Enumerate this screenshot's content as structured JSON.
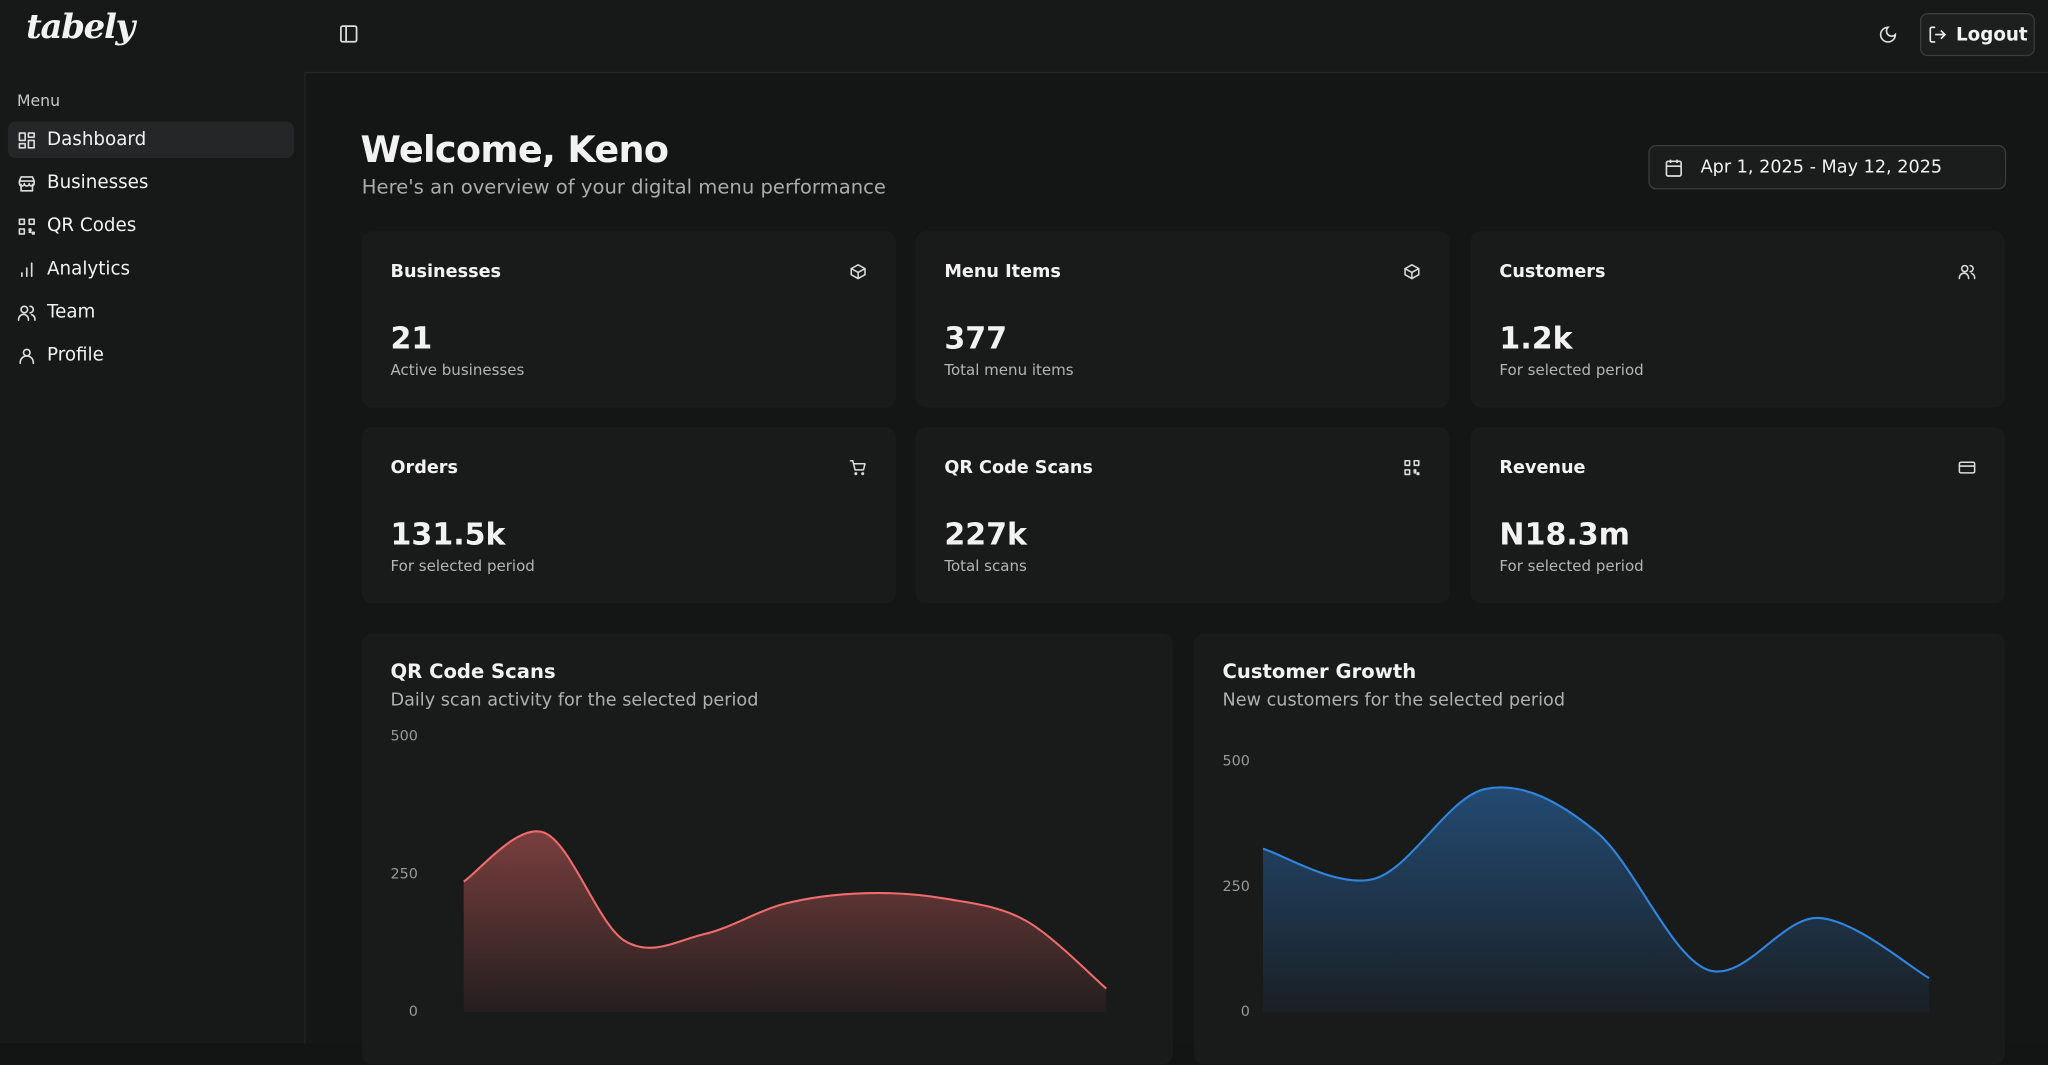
{
  "logo": "tabely",
  "sidebar": {
    "section": "Menu",
    "items": [
      "Dashboard",
      "Businesses",
      "QR Codes",
      "Analytics",
      "Team",
      "Profile"
    ]
  },
  "header": {
    "logout": "Logout"
  },
  "welcome": {
    "title": "Welcome, Keno",
    "subtitle": "Here's an overview of your digital menu performance",
    "date_range": "Apr 1, 2025 - May 12, 2025"
  },
  "stats": [
    {
      "label": "Businesses",
      "value": "21",
      "note": "Active businesses"
    },
    {
      "label": "Menu Items",
      "value": "377",
      "note": "Total menu items"
    },
    {
      "label": "Customers",
      "value": "1.2k",
      "note": "For selected period"
    },
    {
      "label": "Orders",
      "value": "131.5k",
      "note": "For selected period"
    },
    {
      "label": "QR Code Scans",
      "value": "227k",
      "note": "Total scans"
    },
    {
      "label": "Revenue",
      "value": "N18.3m",
      "note": "For selected period"
    }
  ],
  "charts": [
    {
      "type": "area",
      "title": "QR Code Scans",
      "subtitle": "Daily scan activity for the selected period",
      "color": "#f06b6b",
      "ylim": [
        0,
        500
      ],
      "yticks": [
        0,
        250,
        500
      ],
      "values": [
        237,
        326,
        130,
        142,
        197,
        216,
        206,
        166,
        43
      ]
    },
    {
      "type": "area",
      "title": "Customer Growth",
      "subtitle": "New customers for the selected period",
      "color": "#2f86e0",
      "ylim": [
        0,
        500
      ],
      "yticks": [
        0,
        250,
        500
      ],
      "values": [
        326,
        266,
        445,
        360,
        85,
        188,
        68
      ]
    }
  ]
}
